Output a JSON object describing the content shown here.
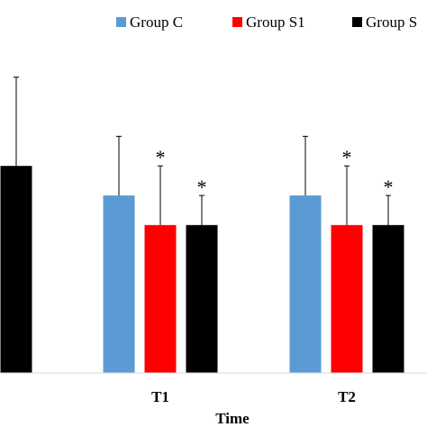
{
  "chart_data": {
    "type": "bar",
    "title": "",
    "xlabel": "Time",
    "ylabel": "",
    "categories": [
      "",
      "T1",
      "T2"
    ],
    "series": [
      {
        "name": "Group C",
        "color": "#5b9bd5",
        "values": [
          null,
          3.0,
          3.0
        ],
        "errors": [
          null,
          1.0,
          1.0
        ],
        "significant": [
          false,
          false,
          false
        ]
      },
      {
        "name": "Group S1",
        "color": "#ff0000",
        "values": [
          null,
          2.5,
          2.5
        ],
        "errors": [
          null,
          1.0,
          1.0
        ],
        "significant": [
          false,
          true,
          true
        ]
      },
      {
        "name": "Group S",
        "color": "#000000",
        "values": [
          3.5,
          2.5,
          2.5
        ],
        "errors": [
          1.5,
          0.5,
          0.5
        ],
        "significant": [
          false,
          true,
          true
        ]
      }
    ],
    "significance_marker": "*",
    "ylim": [
      0,
      6
    ],
    "grid": false,
    "legend_position": "top"
  }
}
